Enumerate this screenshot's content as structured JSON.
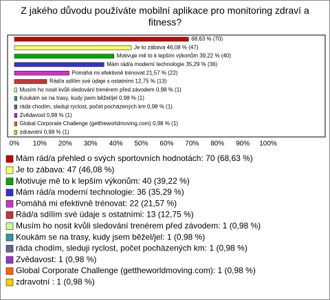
{
  "chart_data": {
    "type": "bar",
    "orientation": "horizontal",
    "title": "Z jakého důvodu používáte mobilní aplikace pro monitoring zdraví a fitness?",
    "categories": [
      "Mám rád/a přehled o svých sportovních hodnotách",
      "Je to zábava",
      "Motivuje mě to k lepším výkonům",
      "Mám rád/a moderní technologie",
      "Pomáhá mi efektivně trénovat",
      "Rád/a sdílím své údaje s ostatními",
      "Musím ho nosit kvůli sledování trenérem před závodem",
      "Koukám se na trasy, kudy jsem běžel/jel",
      "ráda chodím, sleduji ryclost, počet pocházených km",
      "Zvědavost",
      "Global Corporate Challenge (gettheworldmoving.com)",
      "zdravotní"
    ],
    "values": [
      68.63,
      46.08,
      39.22,
      35.29,
      21.57,
      12.75,
      0.98,
      0.98,
      0.98,
      0.98,
      0.98,
      0.98
    ],
    "value_labels": [
      "68,63 % (70)",
      "Je to zábava 46,08 % (47)",
      "Motivuje mě to k lepším výkonům 39,22 % (40)",
      "Mám rád/a moderní technologie 35,29 % (36)",
      "Pomáhá mi efektivně trénovat 21,57 % (22)",
      "Rád/a sdílím své údaje s ostatními 12,75 % (13)",
      "Musím ho nosit kvůli sledování trenérem před závodem 0,98 % (1)",
      "Koukám se na trasy, kudy jsem běžel/jel 0,98 % (1)",
      "ráda chodím, sleduji ryclost, počet pocházených km 0,98 % (1)",
      "Zvědavost 0,98 % (1)",
      "Global Corporate Challenge (gettheworldmoving.com) 0,98 % (1)",
      "zdravotní  0,98 % (1)"
    ],
    "colors": [
      "#cc0000",
      "#ffff66",
      "#00aa00",
      "#3333cc",
      "#cc33cc",
      "#cc3333",
      "#ccff99",
      "#339999",
      "#666699",
      "#9933cc",
      "#ff6600",
      "#ffcc00"
    ],
    "legend": [
      "Mám rád/a přehled o svých sportovních hodnotách: 70 (68,63 %)",
      "Je to zábava: 47 (46,08 %)",
      "Motivuje mě to k lepším výkonům: 40 (39,22 %)",
      "Mám rád/a moderní technologie: 36 (35,29 %)",
      "Pomáhá mi efektivně trénovat: 22 (21,57 %)",
      "Rád/a sdílím své údaje s ostatními: 13 (12,75 %)",
      "Musím ho nosit kvůli sledování trenérem před závodem: 1 (0,98 %)",
      "Koukám se na trasy, kudy jsem běžel/jel: 1 (0,98 %)",
      "ráda chodím, sleduji ryclost, počet pocházených km: 1 (0,98 %)",
      "Zvědavost: 1 (0,98 %)",
      "Global Corporate Challenge (gettheworldmoving.com): 1 (0,98 %)",
      "zdravotní : 1 (0,98 %)"
    ],
    "xlim": [
      0,
      100
    ],
    "xticks": [
      {
        "value": 0,
        "label": "0%"
      },
      {
        "value": 10,
        "label": "10%"
      },
      {
        "value": 20,
        "label": "20%"
      },
      {
        "value": 30,
        "label": "30%"
      },
      {
        "value": 40,
        "label": "40%"
      },
      {
        "value": 50,
        "label": "50%"
      },
      {
        "value": 60,
        "label": "60%"
      },
      {
        "value": 70,
        "label": "70%"
      },
      {
        "value": 80,
        "label": "80%"
      },
      {
        "value": 90,
        "label": "90%"
      },
      {
        "value": 100,
        "label": "100%"
      }
    ]
  }
}
